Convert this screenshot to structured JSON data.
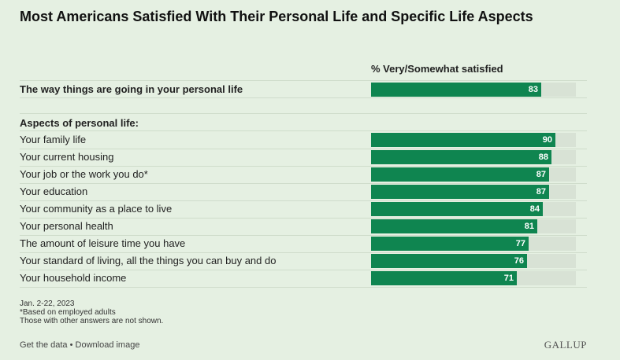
{
  "title": "Most Americans Satisfied With Their Personal Life and Specific Life Aspects",
  "column_header": "% Very/Somewhat satisfied",
  "section_label": "Aspects of personal life:",
  "footnotes": {
    "date": "Jan. 2-22, 2023",
    "note1": "*Based on employed adults",
    "note2": "Those with other answers are not shown."
  },
  "links": {
    "get_data": "Get the data",
    "separator": " • ",
    "download": "Download image"
  },
  "brand": "GALLUP",
  "colors": {
    "bar": "#0f8550",
    "track": "#d8e2d5",
    "background": "#e5f0e2"
  },
  "chart_data": {
    "type": "bar",
    "orientation": "horizontal",
    "xlim": [
      0,
      100
    ],
    "categories": [
      "The way things are going in your personal life",
      "Your family life",
      "Your current housing",
      "Your job or the work you do*",
      "Your education",
      "Your community as a place to live",
      "Your personal health",
      "The amount of leisure time you have",
      "Your standard of living, all the things you can buy and do",
      "Your household income"
    ],
    "values": [
      83,
      90,
      88,
      87,
      87,
      84,
      81,
      77,
      76,
      71
    ]
  }
}
